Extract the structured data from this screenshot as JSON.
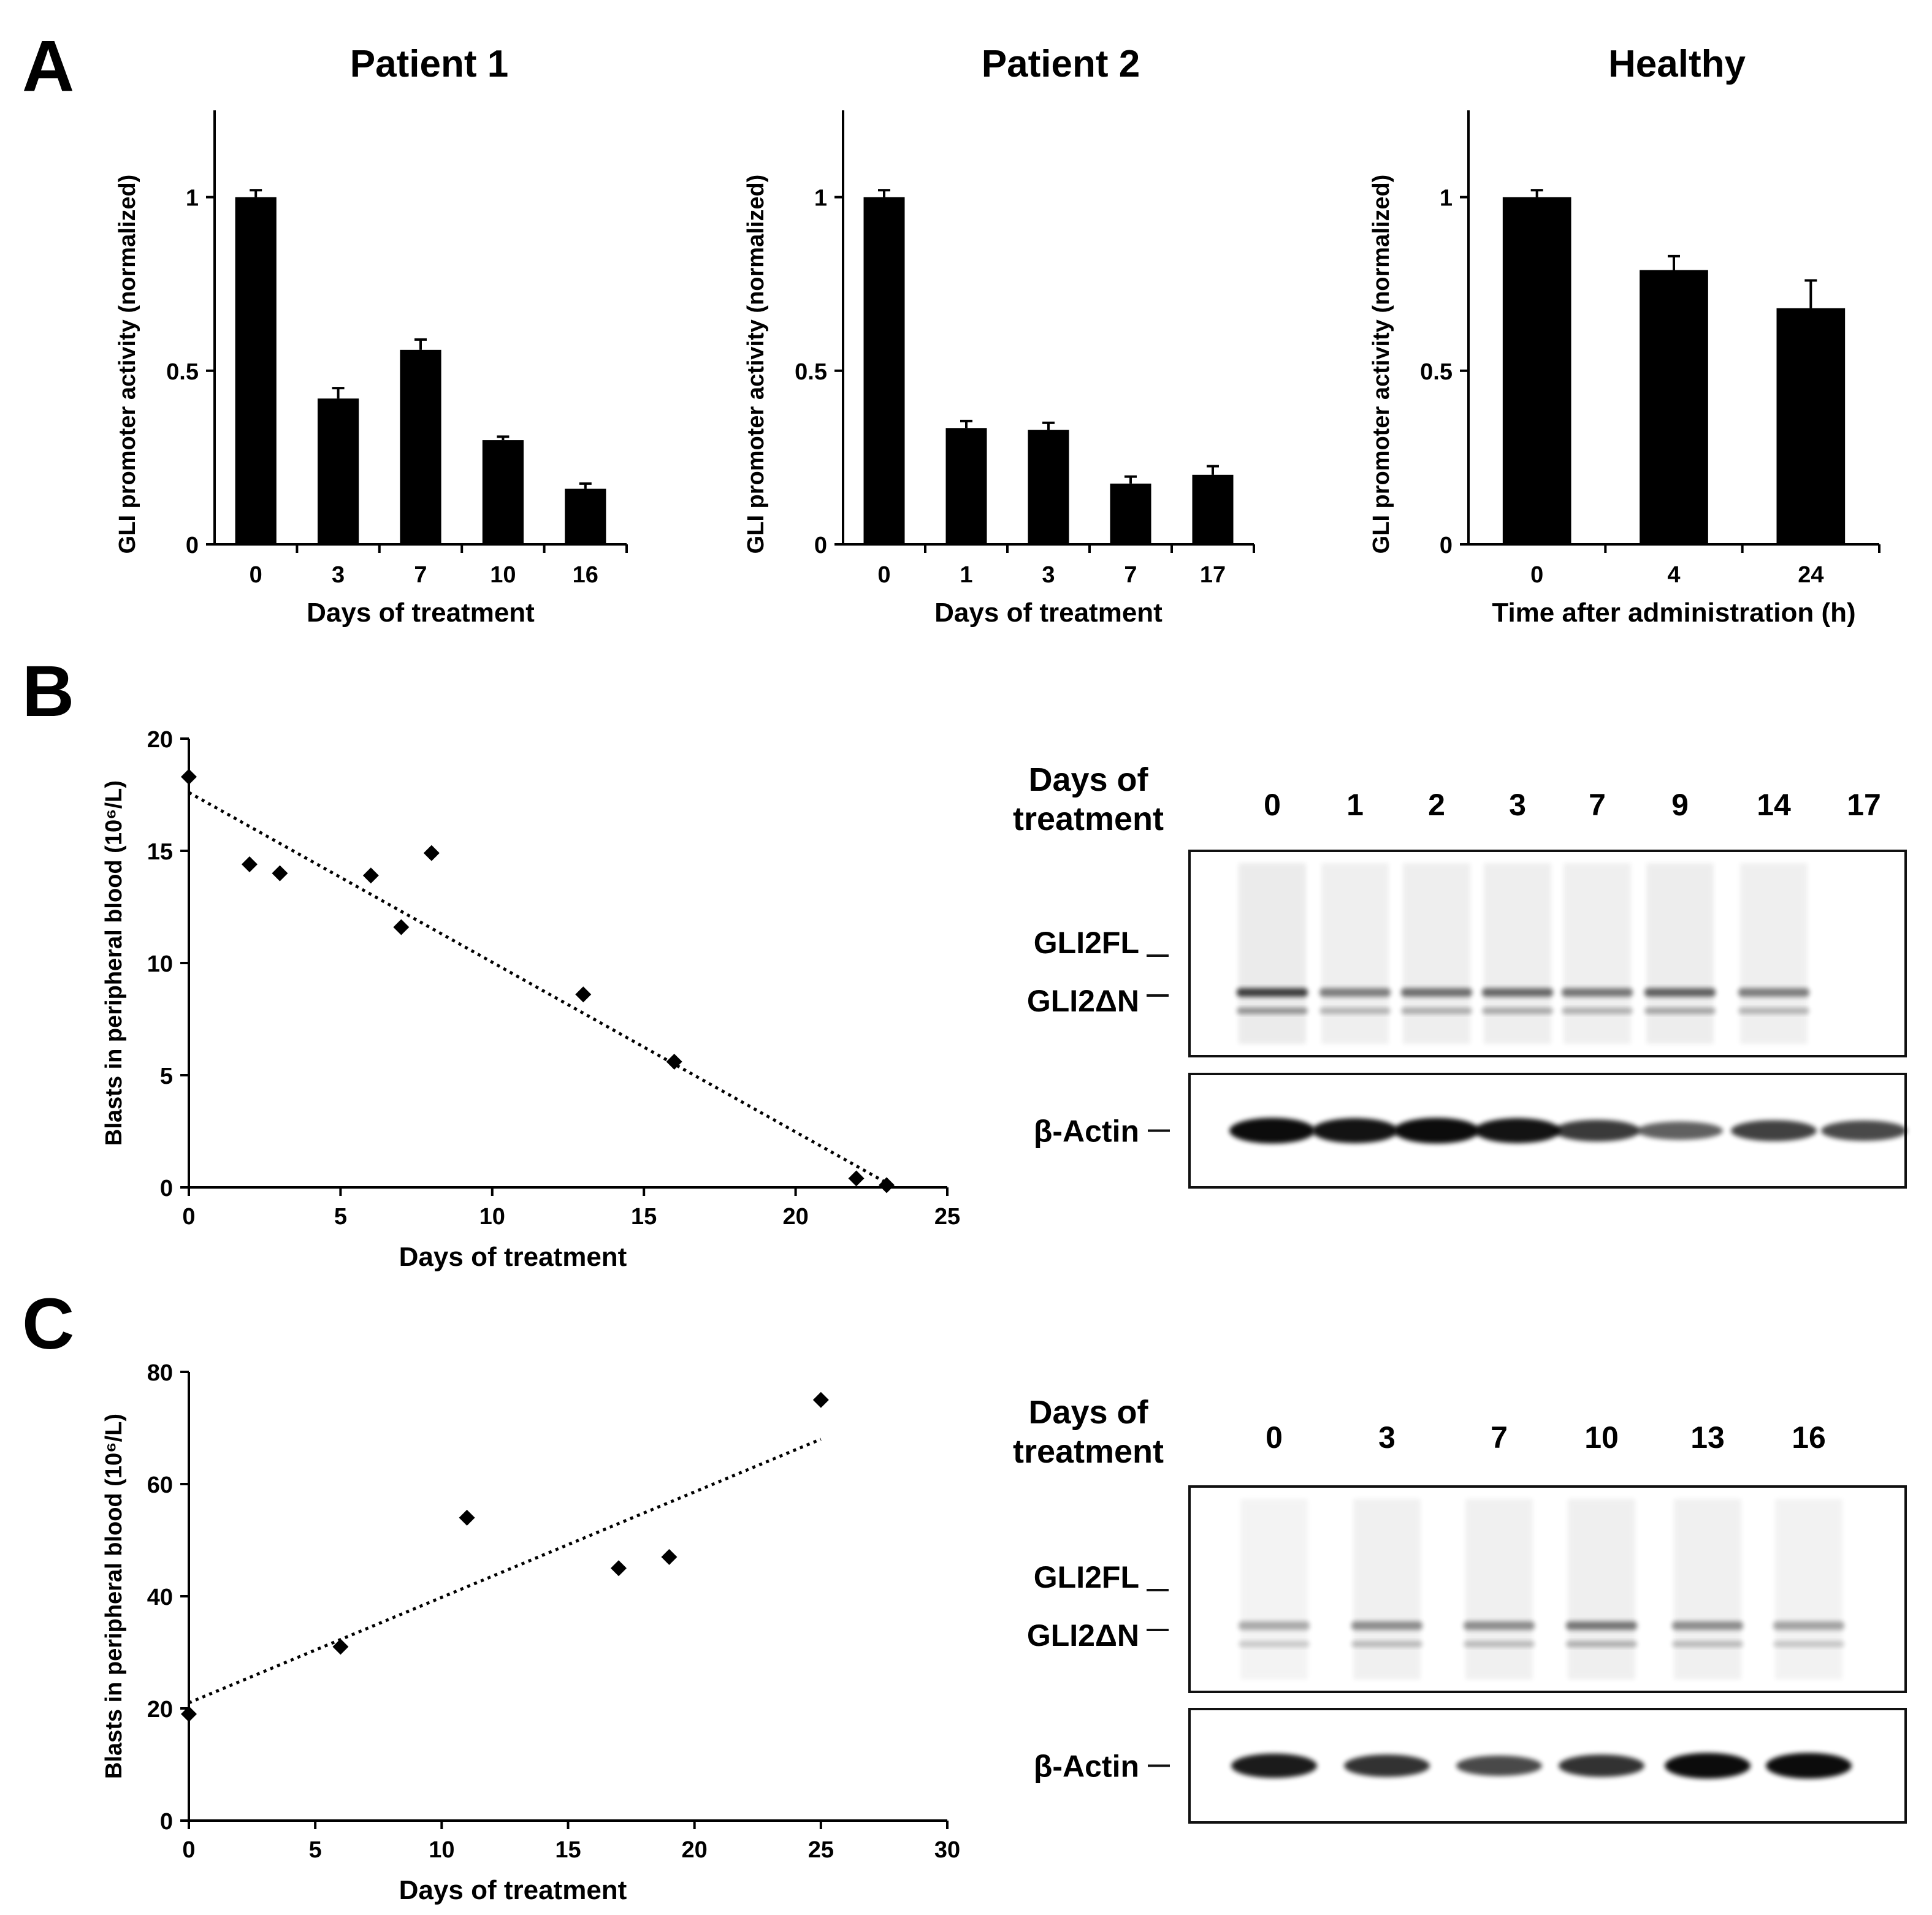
{
  "panel_labels": [
    "A",
    "B",
    "C"
  ],
  "chart_data": [
    {
      "type": "bar",
      "title": "Patient 1",
      "xlabel": "Days of treatment",
      "ylabel": "GLI promoter activity (normalized)",
      "categories": [
        "0",
        "3",
        "7",
        "10",
        "16"
      ],
      "values": [
        1.0,
        0.42,
        0.56,
        0.3,
        0.16
      ],
      "errors": [
        0.02,
        0.03,
        0.03,
        0.01,
        0.015
      ],
      "ylim": [
        0,
        1.25
      ],
      "yticks": [
        "0",
        "0.5",
        "1"
      ]
    },
    {
      "type": "bar",
      "title": "Patient 2",
      "xlabel": "Days of treatment",
      "ylabel": "GLI promoter activity (normalized)",
      "categories": [
        "0",
        "1",
        "3",
        "7",
        "17"
      ],
      "values": [
        1.0,
        0.335,
        0.33,
        0.175,
        0.2
      ],
      "errors": [
        0.02,
        0.02,
        0.02,
        0.02,
        0.025
      ],
      "ylim": [
        0,
        1.25
      ],
      "yticks": [
        "0",
        "0.5",
        "1"
      ]
    },
    {
      "type": "bar",
      "title": "Healthy",
      "xlabel": "Time after administration (h)",
      "ylabel": "GLI promoter activity (normalized)",
      "categories": [
        "0",
        "4",
        "24"
      ],
      "values": [
        1.0,
        0.79,
        0.68
      ],
      "errors": [
        0.02,
        0.04,
        0.08
      ],
      "ylim": [
        0,
        1.25
      ],
      "yticks": [
        "0",
        "0.5",
        "1"
      ]
    },
    {
      "type": "scatter",
      "xlabel": "Days of treatment",
      "ylabel": "Blasts in peripheral blood (10⁶/L)",
      "x": [
        0,
        2,
        3,
        6,
        7,
        8,
        13,
        16,
        22,
        23
      ],
      "y": [
        18.3,
        14.4,
        14.0,
        13.9,
        11.6,
        14.9,
        8.6,
        5.6,
        0.4,
        0.1
      ],
      "trendline": {
        "style": "dotted",
        "x": [
          0,
          23
        ],
        "y": [
          17.6,
          0.2
        ]
      },
      "xlim": [
        0,
        25
      ],
      "ylim": [
        0,
        20
      ],
      "xticks": [
        "0",
        "5",
        "10",
        "15",
        "20",
        "25"
      ],
      "yticks": [
        "0",
        "5",
        "10",
        "15",
        "20"
      ]
    },
    {
      "type": "scatter",
      "xlabel": "Days of treatment",
      "ylabel": "Blasts in peripheral blood (10⁶/L)",
      "x": [
        0,
        6,
        11,
        17,
        19,
        25
      ],
      "y": [
        19,
        31,
        54,
        45,
        47,
        75
      ],
      "trendline": {
        "style": "dotted",
        "x": [
          0,
          25
        ],
        "y": [
          21,
          68
        ]
      },
      "xlim": [
        0,
        30
      ],
      "ylim": [
        0,
        80
      ],
      "xticks": [
        "0",
        "5",
        "10",
        "15",
        "20",
        "25",
        "30"
      ],
      "yticks": [
        "0",
        "20",
        "40",
        "60",
        "80"
      ]
    }
  ],
  "blots": {
    "B": {
      "header": [
        "Days of",
        "treatment"
      ],
      "lanes": [
        "0",
        "1",
        "2",
        "3",
        "7",
        "9",
        "14",
        "17"
      ],
      "gli_labels": [
        "GLI2FL",
        "GLI2ΔN"
      ],
      "actin_label": "β-Actin",
      "gli_intensity": [
        1.0,
        0.55,
        0.65,
        0.7,
        0.6,
        0.75,
        0.55,
        0.0
      ],
      "actin_intensity": [
        1.0,
        0.95,
        1.0,
        0.95,
        0.7,
        0.45,
        0.65,
        0.6
      ]
    },
    "C": {
      "header": [
        "Days of",
        "treatment"
      ],
      "lanes": [
        "0",
        "3",
        "7",
        "10",
        "13",
        "16"
      ],
      "gli_labels": [
        "GLI2FL",
        "GLI2ΔN"
      ],
      "actin_label": "β-Actin",
      "gli_intensity": [
        0.25,
        0.45,
        0.45,
        0.6,
        0.45,
        0.3
      ],
      "actin_intensity": [
        0.9,
        0.75,
        0.6,
        0.75,
        1.0,
        1.0
      ]
    }
  }
}
